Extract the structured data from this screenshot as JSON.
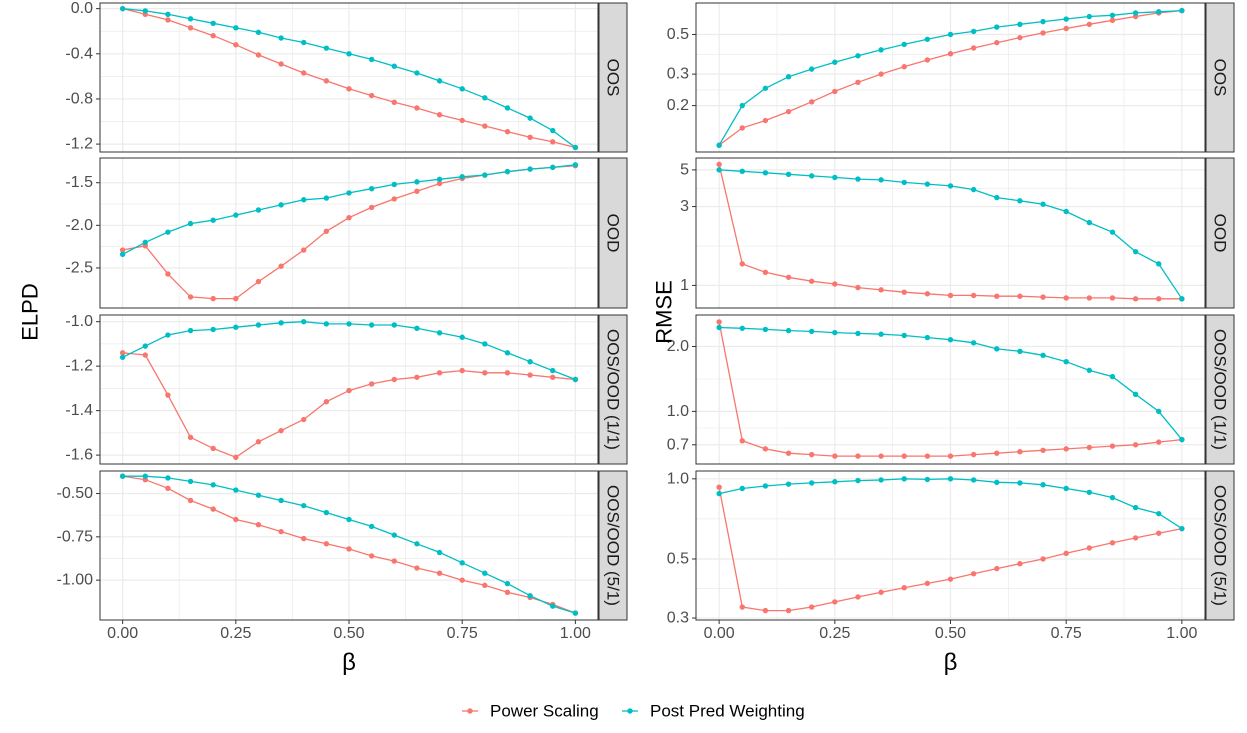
{
  "chart_data": {
    "type": "line",
    "legend": {
      "position": "bottom",
      "entries": [
        {
          "label": "Power Scaling",
          "color": "#F8766D"
        },
        {
          "label": "Post Pred Weighting",
          "color": "#00BFC4"
        }
      ]
    },
    "x": [
      0,
      0.05,
      0.1,
      0.15,
      0.2,
      0.25,
      0.3,
      0.35,
      0.4,
      0.45,
      0.5,
      0.55,
      0.6,
      0.65,
      0.7,
      0.75,
      0.8,
      0.85,
      0.9,
      0.95,
      1
    ],
    "xlabel": "β",
    "xlim": [
      -0.05,
      1.05
    ],
    "xticks": [
      0,
      0.25,
      0.5,
      0.75,
      1
    ],
    "xtick_labels": [
      "0.00",
      "0.25",
      "0.50",
      "0.75",
      "1.00"
    ],
    "grid": true,
    "panel_colors": {
      "background": "#FFFFFF",
      "grid": "#EBEBEB",
      "border": "#333333",
      "strip": "#D9D9D9"
    },
    "columns": [
      {
        "ylabel": "ELPD",
        "yscale": "linear",
        "panels": [
          {
            "strip": "OOS",
            "ylim": [
              -1.27,
              0.05
            ],
            "yticks": [
              0.0,
              -0.4,
              -0.8,
              -1.2
            ],
            "ytick_labels": [
              "0.0",
              "-0.4",
              "-0.8",
              "-1.2"
            ],
            "series": [
              {
                "name": "Power Scaling",
                "color": "#F8766D",
                "values": [
                  0.0,
                  -0.05,
                  -0.1,
                  -0.17,
                  -0.24,
                  -0.32,
                  -0.41,
                  -0.49,
                  -0.57,
                  -0.64,
                  -0.71,
                  -0.77,
                  -0.83,
                  -0.88,
                  -0.94,
                  -0.99,
                  -1.04,
                  -1.09,
                  -1.14,
                  -1.18,
                  -1.23
                ]
              },
              {
                "name": "Post Pred Weighting",
                "color": "#00BFC4",
                "values": [
                  0.0,
                  -0.02,
                  -0.05,
                  -0.09,
                  -0.13,
                  -0.17,
                  -0.21,
                  -0.26,
                  -0.3,
                  -0.35,
                  -0.4,
                  -0.45,
                  -0.51,
                  -0.57,
                  -0.64,
                  -0.71,
                  -0.79,
                  -0.88,
                  -0.97,
                  -1.08,
                  -1.23
                ]
              }
            ]
          },
          {
            "strip": "OOD",
            "ylim": [
              -2.97,
              -1.21
            ],
            "yticks": [
              -1.5,
              -2.0,
              -2.5
            ],
            "ytick_labels": [
              "-1.5",
              "-2.0",
              "-2.5"
            ],
            "series": [
              {
                "name": "Power Scaling",
                "color": "#F8766D",
                "values": [
                  -2.29,
                  -2.24,
                  -2.57,
                  -2.84,
                  -2.86,
                  -2.86,
                  -2.66,
                  -2.48,
                  -2.29,
                  -2.07,
                  -1.91,
                  -1.79,
                  -1.69,
                  -1.6,
                  -1.51,
                  -1.45,
                  -1.41,
                  -1.37,
                  -1.34,
                  -1.32,
                  -1.3
                ]
              },
              {
                "name": "Post Pred Weighting",
                "color": "#00BFC4",
                "values": [
                  -2.34,
                  -2.2,
                  -2.08,
                  -1.98,
                  -1.94,
                  -1.88,
                  -1.82,
                  -1.76,
                  -1.7,
                  -1.68,
                  -1.62,
                  -1.57,
                  -1.52,
                  -1.49,
                  -1.46,
                  -1.43,
                  -1.41,
                  -1.37,
                  -1.34,
                  -1.32,
                  -1.29
                ]
              }
            ]
          },
          {
            "strip": "OOS/OOD (1/1)",
            "ylim": [
              -1.64,
              -0.97
            ],
            "yticks": [
              -1.0,
              -1.2,
              -1.4,
              -1.6
            ],
            "ytick_labels": [
              "-1.0",
              "-1.2",
              "-1.4",
              "-1.6"
            ],
            "series": [
              {
                "name": "Power Scaling",
                "color": "#F8766D",
                "values": [
                  -1.14,
                  -1.15,
                  -1.33,
                  -1.52,
                  -1.57,
                  -1.61,
                  -1.54,
                  -1.49,
                  -1.44,
                  -1.36,
                  -1.31,
                  -1.28,
                  -1.26,
                  -1.25,
                  -1.23,
                  -1.22,
                  -1.23,
                  -1.23,
                  -1.24,
                  -1.25,
                  -1.26
                ]
              },
              {
                "name": "Post Pred Weighting",
                "color": "#00BFC4",
                "values": [
                  -1.16,
                  -1.11,
                  -1.06,
                  -1.04,
                  -1.035,
                  -1.025,
                  -1.015,
                  -1.005,
                  -1.0,
                  -1.01,
                  -1.01,
                  -1.015,
                  -1.015,
                  -1.03,
                  -1.05,
                  -1.07,
                  -1.1,
                  -1.14,
                  -1.18,
                  -1.22,
                  -1.26
                ]
              }
            ]
          },
          {
            "strip": "OOS/OOD (5/1)",
            "ylim": [
              -1.23,
              -0.37
            ],
            "yticks": [
              -0.5,
              -0.75,
              -1.0
            ],
            "ytick_labels": [
              "-0.50",
              "-0.75",
              "-1.00"
            ],
            "series": [
              {
                "name": "Power Scaling",
                "color": "#F8766D",
                "values": [
                  -0.4,
                  -0.42,
                  -0.47,
                  -0.54,
                  -0.59,
                  -0.65,
                  -0.68,
                  -0.72,
                  -0.76,
                  -0.79,
                  -0.82,
                  -0.86,
                  -0.89,
                  -0.93,
                  -0.96,
                  -1.0,
                  -1.03,
                  -1.07,
                  -1.1,
                  -1.14,
                  -1.19
                ]
              },
              {
                "name": "Post Pred Weighting",
                "color": "#00BFC4",
                "values": [
                  -0.4,
                  -0.4,
                  -0.41,
                  -0.43,
                  -0.45,
                  -0.48,
                  -0.51,
                  -0.54,
                  -0.57,
                  -0.61,
                  -0.65,
                  -0.69,
                  -0.74,
                  -0.79,
                  -0.84,
                  -0.9,
                  -0.96,
                  -1.02,
                  -1.09,
                  -1.15,
                  -1.19
                ]
              }
            ]
          }
        ]
      },
      {
        "ylabel": "RMSE",
        "yscale": "log",
        "panels": [
          {
            "strip": "OOS",
            "ylim": [
              0.11,
              0.75
            ],
            "yticks": [
              0.5,
              0.3,
              0.2
            ],
            "ytick_labels": [
              "0.5",
              "0.3",
              "0.2"
            ],
            "series": [
              {
                "name": "Power Scaling",
                "color": "#F8766D",
                "values": [
                  0.12,
                  0.15,
                  0.165,
                  0.185,
                  0.21,
                  0.24,
                  0.27,
                  0.3,
                  0.33,
                  0.36,
                  0.39,
                  0.42,
                  0.45,
                  0.48,
                  0.51,
                  0.54,
                  0.57,
                  0.6,
                  0.63,
                  0.66,
                  0.68
                ]
              },
              {
                "name": "Post Pred Weighting",
                "color": "#00BFC4",
                "values": [
                  0.12,
                  0.2,
                  0.25,
                  0.29,
                  0.32,
                  0.35,
                  0.38,
                  0.41,
                  0.44,
                  0.47,
                  0.5,
                  0.52,
                  0.55,
                  0.57,
                  0.59,
                  0.61,
                  0.63,
                  0.64,
                  0.66,
                  0.67,
                  0.68
                ]
              }
            ]
          },
          {
            "strip": "OOD",
            "ylim": [
              0.73,
              5.9
            ],
            "yticks": [
              5,
              3,
              1
            ],
            "ytick_labels": [
              "5",
              "3",
              "1"
            ],
            "series": [
              {
                "name": "Power Scaling",
                "color": "#F8766D",
                "values": [
                  5.4,
                  1.35,
                  1.2,
                  1.12,
                  1.06,
                  1.02,
                  0.97,
                  0.94,
                  0.91,
                  0.89,
                  0.87,
                  0.87,
                  0.86,
                  0.86,
                  0.85,
                  0.84,
                  0.84,
                  0.84,
                  0.83,
                  0.83,
                  0.83
                ]
              },
              {
                "name": "Post Pred Weighting",
                "color": "#00BFC4",
                "values": [
                  5.0,
                  4.9,
                  4.8,
                  4.7,
                  4.6,
                  4.5,
                  4.4,
                  4.35,
                  4.2,
                  4.1,
                  4.0,
                  3.8,
                  3.4,
                  3.25,
                  3.1,
                  2.8,
                  2.4,
                  2.1,
                  1.6,
                  1.35,
                  0.83
                ]
              }
            ]
          },
          {
            "strip": "OOS/OOD (1/1)",
            "ylim": [
              0.57,
              2.8
            ],
            "yticks": [
              2.0,
              1.0,
              0.7
            ],
            "ytick_labels": [
              "2.0",
              "1.0",
              "0.7"
            ],
            "series": [
              {
                "name": "Power Scaling",
                "color": "#F8766D",
                "values": [
                  2.6,
                  0.73,
                  0.67,
                  0.64,
                  0.63,
                  0.62,
                  0.62,
                  0.62,
                  0.62,
                  0.62,
                  0.62,
                  0.63,
                  0.64,
                  0.65,
                  0.66,
                  0.67,
                  0.68,
                  0.69,
                  0.7,
                  0.72,
                  0.74
                ]
              },
              {
                "name": "Post Pred Weighting",
                "color": "#00BFC4",
                "values": [
                  2.45,
                  2.43,
                  2.4,
                  2.37,
                  2.35,
                  2.32,
                  2.3,
                  2.28,
                  2.25,
                  2.2,
                  2.15,
                  2.08,
                  1.95,
                  1.9,
                  1.82,
                  1.7,
                  1.55,
                  1.45,
                  1.2,
                  1.0,
                  0.74
                ]
              }
            ]
          },
          {
            "strip": "OOS/OOD (5/1)",
            "ylim": [
              0.295,
              1.07
            ],
            "yticks": [
              1.0,
              0.5,
              0.3
            ],
            "ytick_labels": [
              "1.0",
              "0.5",
              "0.3"
            ],
            "series": [
              {
                "name": "Power Scaling",
                "color": "#F8766D",
                "values": [
                  0.93,
                  0.33,
                  0.32,
                  0.32,
                  0.33,
                  0.345,
                  0.36,
                  0.375,
                  0.39,
                  0.405,
                  0.42,
                  0.44,
                  0.46,
                  0.48,
                  0.5,
                  0.525,
                  0.55,
                  0.575,
                  0.6,
                  0.625,
                  0.65
                ]
              },
              {
                "name": "Post Pred Weighting",
                "color": "#00BFC4",
                "values": [
                  0.88,
                  0.92,
                  0.94,
                  0.955,
                  0.965,
                  0.975,
                  0.985,
                  0.99,
                  1.0,
                  0.995,
                  1.0,
                  0.99,
                  0.97,
                  0.965,
                  0.95,
                  0.92,
                  0.89,
                  0.85,
                  0.78,
                  0.74,
                  0.65
                ]
              }
            ]
          }
        ]
      }
    ]
  }
}
